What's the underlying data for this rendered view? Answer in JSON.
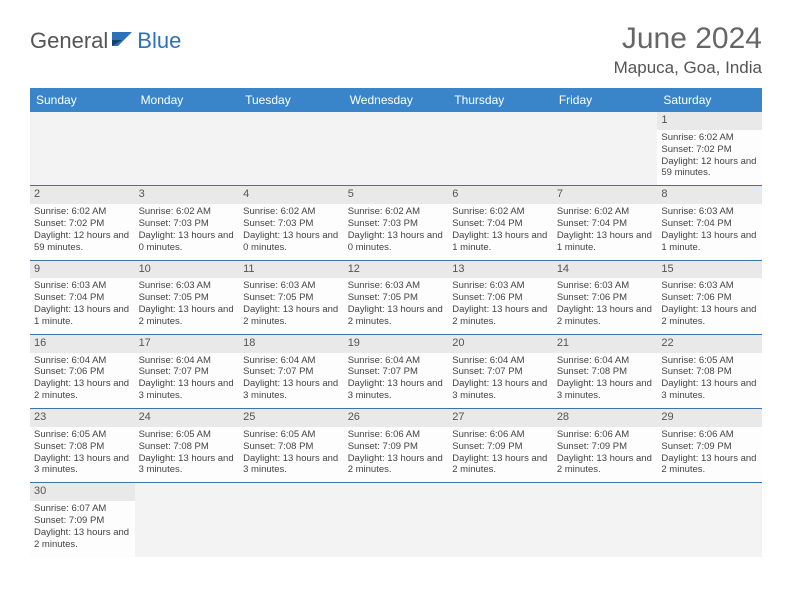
{
  "brand": {
    "part1": "General",
    "part2": "Blue"
  },
  "title": "June 2024",
  "location": "Mapuca, Goa, India",
  "colors": {
    "header_bg": "#3a85c9",
    "row_divider": "#3a74a8",
    "daynum_bg": "#e9e9e9",
    "brand_blue": "#2d72b8"
  },
  "weekdays": [
    "Sunday",
    "Monday",
    "Tuesday",
    "Wednesday",
    "Thursday",
    "Friday",
    "Saturday"
  ],
  "weeks": [
    [
      null,
      null,
      null,
      null,
      null,
      null,
      {
        "n": "1",
        "sr": "Sunrise: 6:02 AM",
        "ss": "Sunset: 7:02 PM",
        "dl": "Daylight: 12 hours and 59 minutes."
      }
    ],
    [
      {
        "n": "2",
        "sr": "Sunrise: 6:02 AM",
        "ss": "Sunset: 7:02 PM",
        "dl": "Daylight: 12 hours and 59 minutes."
      },
      {
        "n": "3",
        "sr": "Sunrise: 6:02 AM",
        "ss": "Sunset: 7:03 PM",
        "dl": "Daylight: 13 hours and 0 minutes."
      },
      {
        "n": "4",
        "sr": "Sunrise: 6:02 AM",
        "ss": "Sunset: 7:03 PM",
        "dl": "Daylight: 13 hours and 0 minutes."
      },
      {
        "n": "5",
        "sr": "Sunrise: 6:02 AM",
        "ss": "Sunset: 7:03 PM",
        "dl": "Daylight: 13 hours and 0 minutes."
      },
      {
        "n": "6",
        "sr": "Sunrise: 6:02 AM",
        "ss": "Sunset: 7:04 PM",
        "dl": "Daylight: 13 hours and 1 minute."
      },
      {
        "n": "7",
        "sr": "Sunrise: 6:02 AM",
        "ss": "Sunset: 7:04 PM",
        "dl": "Daylight: 13 hours and 1 minute."
      },
      {
        "n": "8",
        "sr": "Sunrise: 6:03 AM",
        "ss": "Sunset: 7:04 PM",
        "dl": "Daylight: 13 hours and 1 minute."
      }
    ],
    [
      {
        "n": "9",
        "sr": "Sunrise: 6:03 AM",
        "ss": "Sunset: 7:04 PM",
        "dl": "Daylight: 13 hours and 1 minute."
      },
      {
        "n": "10",
        "sr": "Sunrise: 6:03 AM",
        "ss": "Sunset: 7:05 PM",
        "dl": "Daylight: 13 hours and 2 minutes."
      },
      {
        "n": "11",
        "sr": "Sunrise: 6:03 AM",
        "ss": "Sunset: 7:05 PM",
        "dl": "Daylight: 13 hours and 2 minutes."
      },
      {
        "n": "12",
        "sr": "Sunrise: 6:03 AM",
        "ss": "Sunset: 7:05 PM",
        "dl": "Daylight: 13 hours and 2 minutes."
      },
      {
        "n": "13",
        "sr": "Sunrise: 6:03 AM",
        "ss": "Sunset: 7:06 PM",
        "dl": "Daylight: 13 hours and 2 minutes."
      },
      {
        "n": "14",
        "sr": "Sunrise: 6:03 AM",
        "ss": "Sunset: 7:06 PM",
        "dl": "Daylight: 13 hours and 2 minutes."
      },
      {
        "n": "15",
        "sr": "Sunrise: 6:03 AM",
        "ss": "Sunset: 7:06 PM",
        "dl": "Daylight: 13 hours and 2 minutes."
      }
    ],
    [
      {
        "n": "16",
        "sr": "Sunrise: 6:04 AM",
        "ss": "Sunset: 7:06 PM",
        "dl": "Daylight: 13 hours and 2 minutes."
      },
      {
        "n": "17",
        "sr": "Sunrise: 6:04 AM",
        "ss": "Sunset: 7:07 PM",
        "dl": "Daylight: 13 hours and 3 minutes."
      },
      {
        "n": "18",
        "sr": "Sunrise: 6:04 AM",
        "ss": "Sunset: 7:07 PM",
        "dl": "Daylight: 13 hours and 3 minutes."
      },
      {
        "n": "19",
        "sr": "Sunrise: 6:04 AM",
        "ss": "Sunset: 7:07 PM",
        "dl": "Daylight: 13 hours and 3 minutes."
      },
      {
        "n": "20",
        "sr": "Sunrise: 6:04 AM",
        "ss": "Sunset: 7:07 PM",
        "dl": "Daylight: 13 hours and 3 minutes."
      },
      {
        "n": "21",
        "sr": "Sunrise: 6:04 AM",
        "ss": "Sunset: 7:08 PM",
        "dl": "Daylight: 13 hours and 3 minutes."
      },
      {
        "n": "22",
        "sr": "Sunrise: 6:05 AM",
        "ss": "Sunset: 7:08 PM",
        "dl": "Daylight: 13 hours and 3 minutes."
      }
    ],
    [
      {
        "n": "23",
        "sr": "Sunrise: 6:05 AM",
        "ss": "Sunset: 7:08 PM",
        "dl": "Daylight: 13 hours and 3 minutes."
      },
      {
        "n": "24",
        "sr": "Sunrise: 6:05 AM",
        "ss": "Sunset: 7:08 PM",
        "dl": "Daylight: 13 hours and 3 minutes."
      },
      {
        "n": "25",
        "sr": "Sunrise: 6:05 AM",
        "ss": "Sunset: 7:08 PM",
        "dl": "Daylight: 13 hours and 3 minutes."
      },
      {
        "n": "26",
        "sr": "Sunrise: 6:06 AM",
        "ss": "Sunset: 7:09 PM",
        "dl": "Daylight: 13 hours and 2 minutes."
      },
      {
        "n": "27",
        "sr": "Sunrise: 6:06 AM",
        "ss": "Sunset: 7:09 PM",
        "dl": "Daylight: 13 hours and 2 minutes."
      },
      {
        "n": "28",
        "sr": "Sunrise: 6:06 AM",
        "ss": "Sunset: 7:09 PM",
        "dl": "Daylight: 13 hours and 2 minutes."
      },
      {
        "n": "29",
        "sr": "Sunrise: 6:06 AM",
        "ss": "Sunset: 7:09 PM",
        "dl": "Daylight: 13 hours and 2 minutes."
      }
    ],
    [
      {
        "n": "30",
        "sr": "Sunrise: 6:07 AM",
        "ss": "Sunset: 7:09 PM",
        "dl": "Daylight: 13 hours and 2 minutes."
      },
      null,
      null,
      null,
      null,
      null,
      null
    ]
  ]
}
